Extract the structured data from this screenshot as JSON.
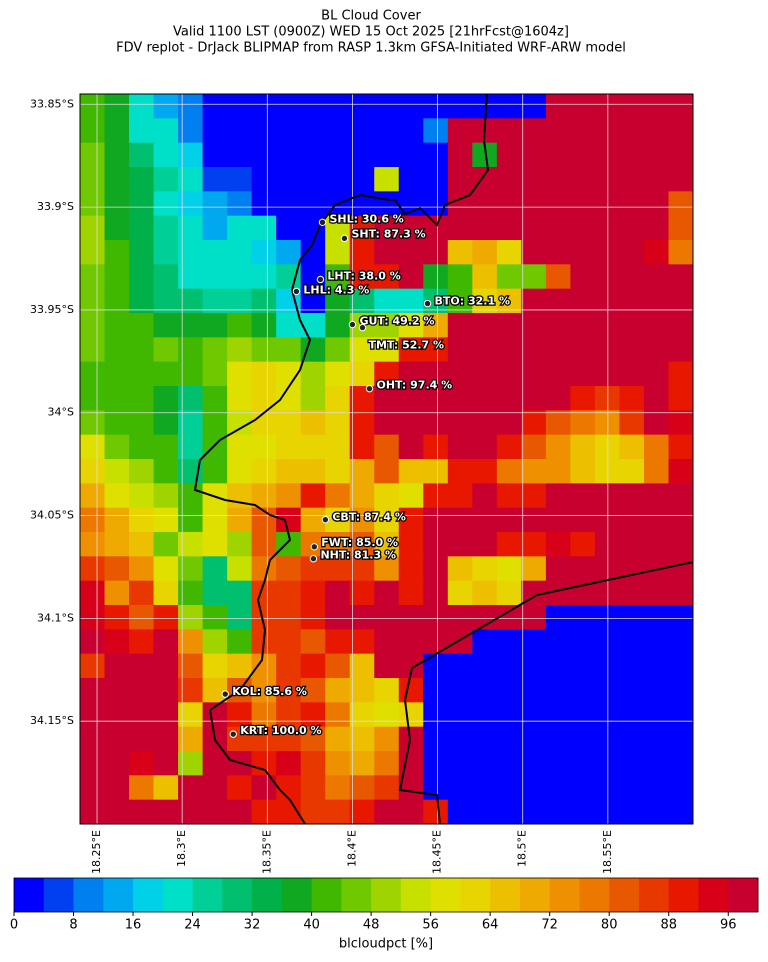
{
  "chart_data": {
    "type": "heatmap-map",
    "title": "BL Cloud Cover",
    "subtitle": "Valid 1100 LST (0900Z) WED 15 Oct 2025 [21hrFcst@1604z]",
    "subtitle2": "FDV replot - DrJack BLIPMAP from RASP 1.3km GFSA-Initiated WRF-ARW model",
    "xlim": [
      18.24,
      18.6
    ],
    "ylim": [
      -34.2,
      -33.845
    ],
    "xticks": [
      {
        "value": 18.25,
        "label": "18.25°E"
      },
      {
        "value": 18.3,
        "label": "18.3°E"
      },
      {
        "value": 18.35,
        "label": "18.35°E"
      },
      {
        "value": 18.4,
        "label": "18.4°E"
      },
      {
        "value": 18.45,
        "label": "18.45°E"
      },
      {
        "value": 18.5,
        "label": "18.5°E"
      },
      {
        "value": 18.55,
        "label": "18.55°E"
      }
    ],
    "yticks": [
      {
        "value": -33.85,
        "label": "33.85°S"
      },
      {
        "value": -33.9,
        "label": "33.9°S"
      },
      {
        "value": -33.95,
        "label": "33.95°S"
      },
      {
        "value": -34.0,
        "label": "34°S"
      },
      {
        "value": -34.05,
        "label": "34.05°S"
      },
      {
        "value": -34.1,
        "label": "34.1°S"
      },
      {
        "value": -34.15,
        "label": "34.15°S"
      }
    ],
    "grid": true,
    "colorbar_label": "blcloudpct [%]",
    "clim": [
      0,
      100
    ],
    "cticks": [
      0,
      8,
      16,
      24,
      32,
      40,
      48,
      56,
      64,
      72,
      80,
      88,
      96
    ],
    "colormap": [
      "#0000ff",
      "#0040f0",
      "#0080f0",
      "#00a8f0",
      "#00d0e8",
      "#00e0c8",
      "#00d098",
      "#00c070",
      "#00b048",
      "#10a820",
      "#40b800",
      "#70c800",
      "#a0d400",
      "#c8e000",
      "#e0e000",
      "#e8d400",
      "#ecc000",
      "#eeaa00",
      "#ee9000",
      "#ec7800",
      "#e85800",
      "#e83800",
      "#e81800",
      "#d80018",
      "#c80030"
    ],
    "values": [
      [
        40,
        36,
        20,
        14,
        8,
        2,
        2,
        2,
        2,
        2,
        2,
        2,
        2,
        2,
        2,
        2,
        2,
        2,
        2,
        97,
        97,
        97,
        97,
        97,
        97
      ],
      [
        40,
        36,
        22,
        22,
        10,
        2,
        2,
        2,
        2,
        2,
        2,
        2,
        2,
        2,
        8,
        97,
        97,
        97,
        97,
        97,
        97,
        97,
        97,
        97,
        97
      ],
      [
        44,
        36,
        30,
        22,
        16,
        2,
        2,
        2,
        2,
        2,
        2,
        2,
        2,
        2,
        2,
        97,
        36,
        97,
        97,
        97,
        97,
        97,
        97,
        97,
        97
      ],
      [
        44,
        36,
        34,
        24,
        20,
        6,
        6,
        2,
        2,
        2,
        2,
        2,
        54,
        2,
        2,
        97,
        97,
        97,
        97,
        97,
        97,
        97,
        97,
        97,
        97
      ],
      [
        44,
        36,
        34,
        20,
        16,
        14,
        10,
        2,
        2,
        2,
        2,
        2,
        2,
        2,
        2,
        97,
        97,
        97,
        97,
        97,
        97,
        97,
        97,
        97,
        80
      ],
      [
        50,
        36,
        34,
        24,
        20,
        12,
        20,
        20,
        2,
        2,
        54,
        90,
        97,
        97,
        97,
        97,
        97,
        97,
        97,
        97,
        97,
        97,
        97,
        97,
        80
      ],
      [
        48,
        40,
        34,
        24,
        20,
        20,
        20,
        18,
        14,
        2,
        52,
        90,
        97,
        97,
        97,
        65,
        68,
        60,
        97,
        97,
        97,
        97,
        97,
        94,
        76
      ],
      [
        44,
        40,
        34,
        30,
        20,
        20,
        20,
        22,
        26,
        2,
        40,
        90,
        90,
        97,
        38,
        40,
        64,
        46,
        44,
        80,
        97,
        97,
        97,
        97,
        97
      ],
      [
        44,
        40,
        34,
        30,
        30,
        24,
        24,
        30,
        18,
        2,
        36,
        30,
        20,
        20,
        30,
        40,
        60,
        66,
        97,
        97,
        97,
        97,
        97,
        97,
        97
      ],
      [
        44,
        40,
        40,
        36,
        38,
        38,
        40,
        38,
        22,
        20,
        38,
        50,
        50,
        56,
        68,
        97,
        97,
        97,
        97,
        97,
        97,
        97,
        97,
        97,
        97
      ],
      [
        44,
        40,
        40,
        44,
        40,
        44,
        48,
        44,
        44,
        36,
        44,
        56,
        56,
        90,
        90,
        97,
        97,
        97,
        97,
        97,
        97,
        97,
        97,
        97,
        97
      ],
      [
        40,
        40,
        40,
        40,
        40,
        44,
        56,
        60,
        56,
        50,
        56,
        60,
        90,
        97,
        97,
        97,
        97,
        97,
        97,
        97,
        97,
        97,
        97,
        97,
        90
      ],
      [
        40,
        40,
        40,
        36,
        30,
        40,
        56,
        60,
        58,
        50,
        60,
        88,
        97,
        97,
        97,
        97,
        97,
        97,
        97,
        97,
        90,
        84,
        90,
        97,
        90
      ],
      [
        44,
        40,
        40,
        36,
        24,
        40,
        54,
        60,
        60,
        64,
        60,
        88,
        97,
        97,
        97,
        97,
        97,
        97,
        88,
        80,
        78,
        72,
        84,
        97,
        92
      ],
      [
        56,
        44,
        40,
        40,
        24,
        40,
        56,
        56,
        60,
        60,
        60,
        88,
        80,
        97,
        90,
        97,
        97,
        88,
        80,
        72,
        66,
        62,
        66,
        76,
        88
      ],
      [
        60,
        52,
        48,
        42,
        30,
        42,
        56,
        60,
        64,
        64,
        60,
        70,
        80,
        66,
        64,
        90,
        90,
        76,
        72,
        72,
        64,
        60,
        62,
        76,
        92
      ],
      [
        70,
        58,
        52,
        48,
        40,
        58,
        64,
        70,
        72,
        88,
        76,
        68,
        60,
        56,
        88,
        90,
        97,
        90,
        88,
        97,
        97,
        97,
        97,
        97,
        97
      ],
      [
        76,
        68,
        60,
        56,
        40,
        58,
        68,
        80,
        92,
        68,
        62,
        72,
        60,
        88,
        97,
        97,
        97,
        97,
        97,
        97,
        97,
        97,
        97,
        97,
        97
      ],
      [
        72,
        68,
        64,
        44,
        52,
        58,
        48,
        80,
        40,
        76,
        78,
        80,
        64,
        88,
        97,
        97,
        97,
        88,
        90,
        92,
        88,
        97,
        97,
        97,
        97
      ],
      [
        84,
        80,
        72,
        56,
        44,
        28,
        52,
        76,
        82,
        84,
        84,
        84,
        72,
        88,
        97,
        64,
        60,
        56,
        70,
        97,
        97,
        97,
        97,
        97,
        97
      ],
      [
        92,
        72,
        84,
        60,
        40,
        28,
        28,
        84,
        84,
        88,
        97,
        88,
        97,
        88,
        97,
        60,
        64,
        60,
        97,
        97,
        97,
        97,
        97,
        97,
        97
      ],
      [
        92,
        90,
        80,
        88,
        50,
        40,
        30,
        84,
        84,
        88,
        97,
        97,
        97,
        97,
        97,
        97,
        97,
        97,
        97,
        2,
        2,
        2,
        2,
        2,
        2
      ],
      [
        97,
        92,
        90,
        97,
        72,
        48,
        40,
        84,
        84,
        80,
        88,
        88,
        97,
        97,
        97,
        97,
        2,
        2,
        2,
        2,
        2,
        2,
        2,
        2,
        2
      ],
      [
        84,
        97,
        97,
        97,
        80,
        60,
        64,
        72,
        84,
        90,
        80,
        66,
        97,
        97,
        2,
        2,
        2,
        2,
        2,
        2,
        2,
        2,
        2,
        2,
        2
      ],
      [
        97,
        97,
        97,
        97,
        84,
        64,
        80,
        72,
        84,
        80,
        68,
        66,
        62,
        90,
        2,
        2,
        2,
        2,
        2,
        2,
        2,
        2,
        2,
        2,
        2
      ],
      [
        97,
        97,
        97,
        97,
        60,
        97,
        90,
        76,
        84,
        88,
        76,
        62,
        56,
        60,
        2,
        2,
        2,
        2,
        2,
        2,
        2,
        2,
        2,
        2,
        2
      ],
      [
        97,
        97,
        97,
        97,
        68,
        97,
        84,
        84,
        86,
        80,
        68,
        66,
        72,
        97,
        2,
        2,
        2,
        2,
        2,
        2,
        2,
        2,
        2,
        2,
        2
      ],
      [
        97,
        97,
        92,
        97,
        50,
        97,
        97,
        90,
        92,
        84,
        72,
        70,
        76,
        97,
        2,
        2,
        2,
        2,
        2,
        2,
        2,
        2,
        2,
        2,
        2
      ],
      [
        97,
        97,
        76,
        64,
        97,
        97,
        90,
        97,
        88,
        84,
        78,
        80,
        84,
        97,
        2,
        2,
        2,
        2,
        2,
        2,
        2,
        2,
        2,
        2,
        2
      ],
      [
        97,
        97,
        97,
        97,
        97,
        97,
        97,
        90,
        88,
        84,
        84,
        88,
        97,
        97,
        90,
        2,
        2,
        2,
        2,
        2,
        2,
        2,
        2,
        2,
        2
      ]
    ],
    "stations": [
      {
        "label": "SHL: 30.6 %",
        "value": 30.6,
        "lon": 18.3824,
        "lat": -33.9074
      },
      {
        "label": "SHT: 87.3 %",
        "value": 87.3,
        "lon": 18.3953,
        "lat": -33.9152
      },
      {
        "label": "LHT: 38.0 %",
        "value": 38.0,
        "lon": 18.3812,
        "lat": -33.9352
      },
      {
        "label": "LHL: 4.3 %",
        "value": 4.3,
        "lon": 18.3671,
        "lat": -33.941
      },
      {
        "label": "BTO: 32.1 %",
        "value": 32.1,
        "lon": 18.4441,
        "lat": -33.9469
      },
      {
        "label": "GUT: 49.2 %",
        "value": 49.2,
        "lon": 18.4,
        "lat": -33.9571
      },
      {
        "label": "TMT: 52.7 %",
        "value": 52.7,
        "lon": 18.4059,
        "lat": -33.9586
      },
      {
        "label": "OHT: 97.4 %",
        "value": 97.4,
        "lon": 18.41,
        "lat": -33.9883
      },
      {
        "label": "CBT: 87.4 %",
        "value": 87.4,
        "lon": 18.3841,
        "lat": -34.052
      },
      {
        "label": "FWT: 85.0 %",
        "value": 85.0,
        "lon": 18.3776,
        "lat": -34.0652
      },
      {
        "label": "NHT: 81.3 %",
        "value": 81.3,
        "lon": 18.3771,
        "lat": -34.071
      },
      {
        "label": "KOL: 85.6 %",
        "value": 85.6,
        "lon": 18.3253,
        "lat": -34.1368
      },
      {
        "label": "KRT: 100.0 %",
        "value": 100.0,
        "lon": 18.33,
        "lat": -34.1563
      }
    ]
  }
}
